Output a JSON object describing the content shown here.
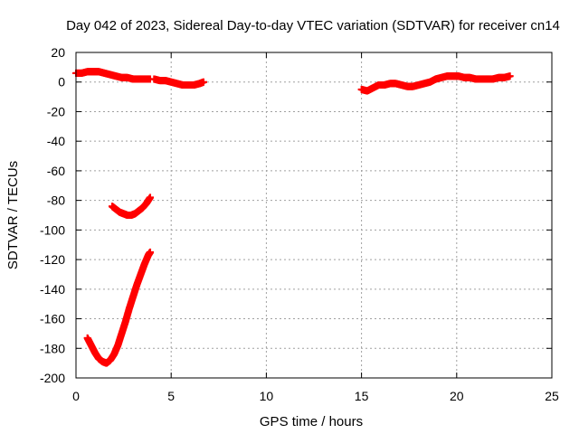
{
  "chart_data": {
    "type": "scatter",
    "title": "Day 042 of 2023, Sidereal Day-to-day VTEC variation (SDTVAR) for receiver cn14",
    "xlabel": "GPS time / hours",
    "ylabel": "SDTVAR / TECUs",
    "xlim": [
      0,
      25
    ],
    "ylim": [
      -200,
      20
    ],
    "xticks": [
      0,
      5,
      10,
      15,
      20,
      25
    ],
    "yticks": [
      20,
      0,
      -20,
      -40,
      -60,
      -80,
      -100,
      -120,
      -140,
      -160,
      -180,
      -200
    ],
    "grid": true,
    "legend": "none",
    "marker": "plus",
    "color": "#ff0000",
    "series": [
      {
        "points": [
          [
            0.0,
            6
          ],
          [
            0.3,
            6
          ],
          [
            0.6,
            7
          ],
          [
            0.9,
            7
          ],
          [
            1.2,
            7
          ],
          [
            1.5,
            6
          ],
          [
            1.8,
            5
          ],
          [
            2.1,
            4
          ],
          [
            2.4,
            3
          ],
          [
            2.7,
            3
          ],
          [
            3.0,
            2
          ],
          [
            3.3,
            2
          ],
          [
            3.6,
            2
          ],
          [
            3.9,
            2
          ]
        ]
      },
      {
        "points": [
          [
            4.1,
            2
          ],
          [
            4.4,
            1
          ],
          [
            4.7,
            1
          ],
          [
            5.0,
            0
          ],
          [
            5.3,
            -1
          ],
          [
            5.6,
            -2
          ],
          [
            5.9,
            -2
          ],
          [
            6.2,
            -2
          ],
          [
            6.5,
            -1
          ],
          [
            6.7,
            0
          ]
        ]
      },
      {
        "points": [
          [
            1.9,
            -84
          ],
          [
            2.1,
            -86
          ],
          [
            2.3,
            -88
          ],
          [
            2.5,
            -89
          ],
          [
            2.7,
            -90
          ],
          [
            2.9,
            -90
          ],
          [
            3.1,
            -89
          ],
          [
            3.3,
            -87
          ],
          [
            3.5,
            -85
          ],
          [
            3.7,
            -82
          ],
          [
            3.9,
            -78
          ]
        ]
      },
      {
        "points": [
          [
            0.6,
            -173
          ],
          [
            0.8,
            -178
          ],
          [
            1.0,
            -183
          ],
          [
            1.2,
            -187
          ],
          [
            1.4,
            -189
          ],
          [
            1.6,
            -190
          ],
          [
            1.8,
            -188
          ],
          [
            2.0,
            -184
          ],
          [
            2.2,
            -178
          ],
          [
            2.4,
            -170
          ],
          [
            2.6,
            -162
          ],
          [
            2.8,
            -153
          ],
          [
            3.0,
            -145
          ],
          [
            3.2,
            -137
          ],
          [
            3.4,
            -130
          ],
          [
            3.6,
            -123
          ],
          [
            3.8,
            -117
          ],
          [
            3.9,
            -115
          ]
        ]
      },
      {
        "points": [
          [
            15.0,
            -5
          ],
          [
            15.3,
            -6
          ],
          [
            15.6,
            -4
          ],
          [
            15.9,
            -2
          ],
          [
            16.2,
            -2
          ],
          [
            16.5,
            -1
          ],
          [
            16.8,
            -1
          ],
          [
            17.1,
            -2
          ],
          [
            17.4,
            -3
          ],
          [
            17.7,
            -3
          ],
          [
            18.0,
            -2
          ],
          [
            18.3,
            -1
          ],
          [
            18.6,
            0
          ],
          [
            18.9,
            2
          ],
          [
            19.2,
            3
          ],
          [
            19.5,
            4
          ],
          [
            19.8,
            4
          ],
          [
            20.1,
            4
          ],
          [
            20.4,
            3
          ],
          [
            20.7,
            3
          ],
          [
            21.0,
            2
          ],
          [
            21.3,
            2
          ],
          [
            21.6,
            2
          ],
          [
            21.9,
            2
          ],
          [
            22.2,
            3
          ],
          [
            22.5,
            3
          ],
          [
            22.8,
            4
          ]
        ]
      }
    ]
  }
}
